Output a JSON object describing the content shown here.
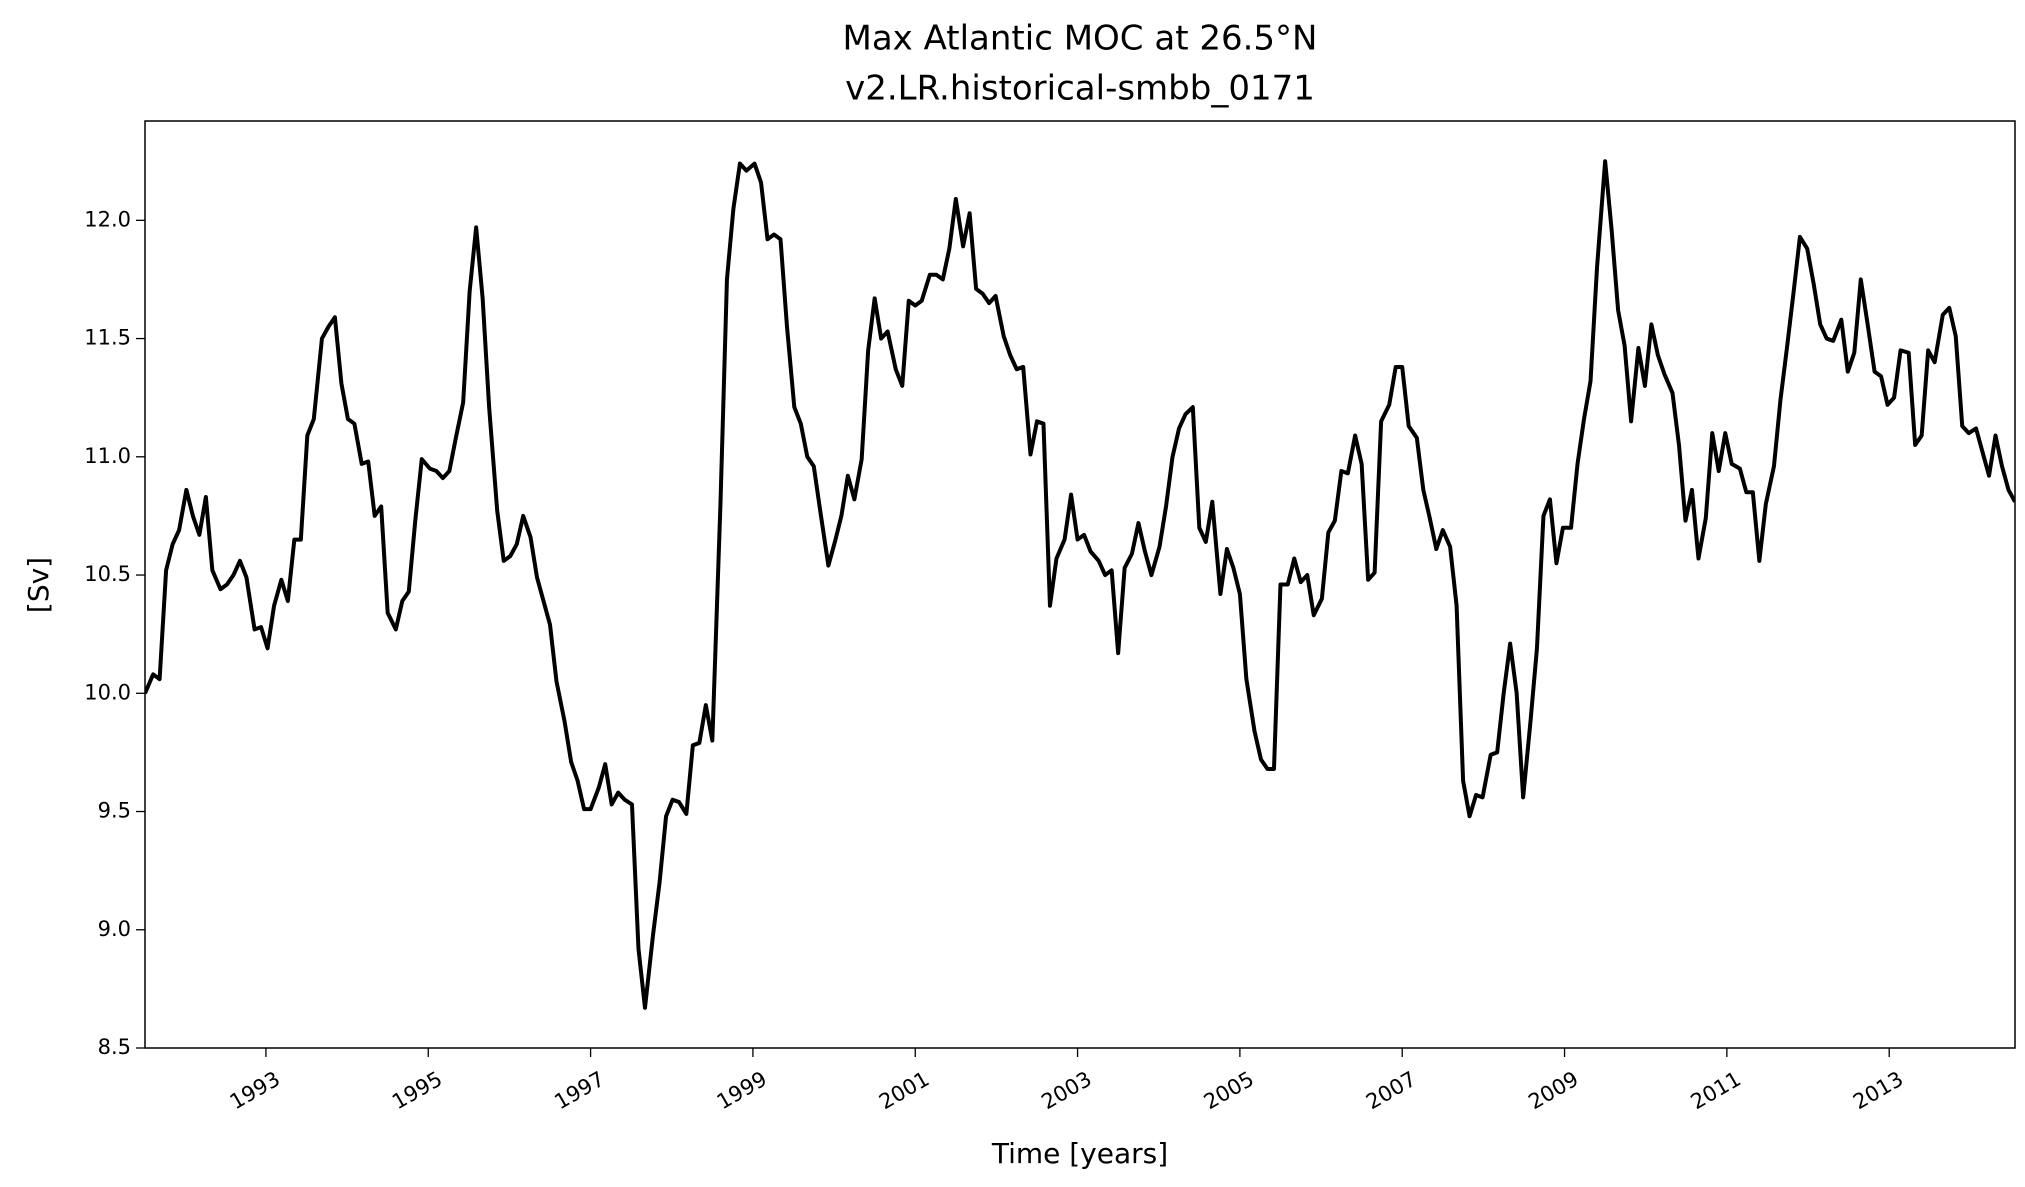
{
  "chart_data": {
    "type": "line",
    "title": "Max Atlantic MOC at 26.5°N",
    "subtitle": "v2.LR.historical-smbb_0171",
    "xlabel": "Time [years]",
    "ylabel": "[Sv]",
    "xlim": [
      1991.51,
      2014.55
    ],
    "ylim": [
      8.5,
      12.42
    ],
    "xticks": [
      1993,
      1995,
      1997,
      1999,
      2001,
      2003,
      2005,
      2007,
      2009,
      2011,
      2013
    ],
    "yticks": [
      8.5,
      {
        "value": 9,
        "label": "9.0"
      },
      9.5,
      {
        "value": 10,
        "label": "10.0"
      },
      10.5,
      {
        "value": 11,
        "label": "11.0"
      },
      11.5,
      {
        "value": 12,
        "label": "12.0"
      }
    ],
    "grid": false,
    "series": [
      {
        "name": "Max Atlantic MOC",
        "color": "#000000",
        "x": [
          1991.51,
          1991.61,
          1991.69,
          1991.77,
          1991.85,
          1991.93,
          1992.02,
          1992.1,
          1992.18,
          1992.26,
          1992.34,
          1992.44,
          1992.52,
          1992.6,
          1992.68,
          1992.76,
          1992.86,
          1992.94,
          1993.02,
          1993.1,
          1993.19,
          1993.27,
          1993.35,
          1993.43,
          1993.51,
          1993.59,
          1993.69,
          1993.77,
          1993.85,
          1993.93,
          1994.01,
          1994.09,
          1994.18,
          1994.26,
          1994.34,
          1994.42,
          1994.5,
          1994.6,
          1994.68,
          1994.76,
          1994.84,
          1994.92,
          1995.02,
          1995.1,
          1995.18,
          1995.26,
          1995.34,
          1995.43,
          1995.51,
          1995.59,
          1995.67,
          1995.75,
          1995.85,
          1995.93,
          1996.01,
          1996.09,
          1996.17,
          1996.26,
          1996.34,
          1996.42,
          1996.5,
          1996.58,
          1996.68,
          1996.76,
          1996.84,
          1996.92,
          1997.0,
          1997.1,
          1997.18,
          1997.26,
          1997.34,
          1997.42,
          1997.51,
          1997.59,
          1997.67,
          1997.77,
          1997.85,
          1997.93,
          1998.01,
          1998.09,
          1998.18,
          1998.26,
          1998.34,
          1998.42,
          1998.5,
          1998.6,
          1998.68,
          1998.76,
          1998.84,
          1998.92,
          1999.02,
          1999.1,
          1999.18,
          1999.26,
          1999.34,
          1999.42,
          1999.51,
          1999.59,
          1999.67,
          1999.75,
          1999.83,
          1999.93,
          2000.01,
          2000.09,
          2000.17,
          2000.25,
          2000.34,
          2000.42,
          2000.5,
          2000.58,
          2000.66,
          2000.76,
          2000.84,
          2000.92,
          2001.0,
          2001.08,
          2001.18,
          2001.26,
          2001.34,
          2001.42,
          2001.5,
          2001.59,
          2001.67,
          2001.75,
          2001.83,
          2001.91,
          2001.99,
          2002.09,
          2002.17,
          2002.25,
          2002.33,
          2002.42,
          2002.5,
          2002.58,
          2002.66,
          2002.74,
          2002.84,
          2002.92,
          2003.0,
          2003.08,
          2003.16,
          2003.26,
          2003.34,
          2003.42,
          2003.5,
          2003.58,
          2003.67,
          2003.75,
          2003.83,
          2003.91,
          2004.01,
          2004.09,
          2004.17,
          2004.25,
          2004.33,
          2004.42,
          2004.5,
          2004.58,
          2004.66,
          2004.76,
          2004.84,
          2004.92,
          2005.0,
          2005.08,
          2005.18,
          2005.26,
          2005.34,
          2005.42,
          2005.5,
          2005.59,
          2005.67,
          2005.75,
          2005.83,
          2005.91,
          2006.01,
          2006.09,
          2006.17,
          2006.25,
          2006.33,
          2006.42,
          2006.5,
          2006.58,
          2006.66,
          2006.74,
          2006.84,
          2006.92,
          2007.0,
          2007.08,
          2007.18,
          2007.26,
          2007.34,
          2007.42,
          2007.5,
          2007.59,
          2007.67,
          2007.75,
          2007.83,
          2007.91,
          2007.99,
          2008.09,
          2008.17,
          2008.25,
          2008.33,
          2008.41,
          2008.49,
          2008.58,
          2008.66,
          2008.74,
          2008.82,
          2008.9,
          2008.98,
          2009.08,
          2009.16,
          2009.24,
          2009.32,
          2009.4,
          2009.5,
          2009.58,
          2009.66,
          2009.74,
          2009.82,
          2009.91,
          2009.99,
          2010.07,
          2010.15,
          2010.23,
          2010.33,
          2010.41,
          2010.49,
          2010.57,
          2010.65,
          2010.74,
          2010.82,
          2010.9,
          2010.98,
          2011.06,
          2011.16,
          2011.24,
          2011.32,
          2011.4,
          2011.48,
          2011.58,
          2011.66,
          2011.74,
          2011.82,
          2011.9,
          2011.99,
          2012.07,
          2012.15,
          2012.23,
          2012.31,
          2012.41,
          2012.49,
          2012.57,
          2012.65,
          2012.73,
          2012.82,
          2012.9,
          2012.98,
          2013.06,
          2013.14,
          2013.24,
          2013.32,
          2013.4,
          2013.48,
          2013.56,
          2013.66,
          2013.74,
          2013.82,
          2013.9,
          2013.98,
          2014.07,
          2014.15,
          2014.23,
          2014.31,
          2014.39,
          2014.47,
          2014.55
        ],
        "values": [
          10.0,
          10.08,
          10.06,
          10.52,
          10.63,
          10.69,
          10.86,
          10.75,
          10.67,
          10.83,
          10.52,
          10.44,
          10.46,
          10.5,
          10.56,
          10.49,
          10.27,
          10.28,
          10.19,
          10.37,
          10.48,
          10.39,
          10.65,
          10.65,
          11.09,
          11.16,
          11.5,
          11.55,
          11.59,
          11.31,
          11.16,
          11.14,
          10.97,
          10.98,
          10.75,
          10.79,
          10.34,
          10.27,
          10.39,
          10.43,
          10.73,
          10.99,
          10.95,
          10.94,
          10.91,
          10.94,
          11.08,
          11.23,
          11.7,
          11.97,
          11.67,
          11.21,
          10.77,
          10.56,
          10.58,
          10.63,
          10.75,
          10.66,
          10.49,
          10.39,
          10.29,
          10.05,
          9.88,
          9.71,
          9.63,
          9.51,
          9.51,
          9.6,
          9.7,
          9.53,
          9.58,
          9.55,
          9.53,
          8.92,
          8.67,
          8.98,
          9.2,
          9.48,
          9.55,
          9.54,
          9.49,
          9.78,
          9.79,
          9.95,
          9.8,
          10.8,
          11.75,
          12.05,
          12.24,
          12.21,
          12.24,
          12.16,
          11.92,
          11.94,
          11.92,
          11.55,
          11.21,
          11.14,
          11.0,
          10.96,
          10.77,
          10.54,
          10.64,
          10.75,
          10.92,
          10.82,
          10.99,
          11.45,
          11.67,
          11.5,
          11.53,
          11.37,
          11.3,
          11.66,
          11.64,
          11.66,
          11.77,
          11.77,
          11.75,
          11.88,
          12.09,
          11.89,
          12.03,
          11.71,
          11.69,
          11.65,
          11.68,
          11.51,
          11.43,
          11.37,
          11.38,
          11.01,
          11.15,
          11.14,
          10.37,
          10.57,
          10.65,
          10.84,
          10.65,
          10.67,
          10.6,
          10.56,
          10.5,
          10.52,
          10.17,
          10.53,
          10.59,
          10.72,
          10.6,
          10.5,
          10.62,
          10.79,
          11.0,
          11.12,
          11.18,
          11.21,
          10.7,
          10.64,
          10.81,
          10.42,
          10.61,
          10.53,
          10.42,
          10.06,
          9.84,
          9.72,
          9.68,
          9.68,
          10.46,
          10.46,
          10.57,
          10.47,
          10.5,
          10.33,
          10.4,
          10.68,
          10.73,
          10.94,
          10.93,
          11.09,
          10.97,
          10.48,
          10.51,
          11.15,
          11.22,
          11.38,
          11.38,
          11.13,
          11.08,
          10.86,
          10.74,
          10.61,
          10.69,
          10.62,
          10.37,
          9.63,
          9.48,
          9.57,
          9.56,
          9.74,
          9.75,
          10.0,
          10.21,
          10.0,
          9.56,
          9.88,
          10.19,
          10.75,
          10.82,
          10.55,
          10.7,
          10.7,
          10.97,
          11.16,
          11.32,
          11.8,
          12.25,
          11.96,
          11.62,
          11.47,
          11.15,
          11.46,
          11.3,
          11.56,
          11.43,
          11.35,
          11.27,
          11.05,
          10.73,
          10.86,
          10.57,
          10.74,
          11.1,
          10.94,
          11.1,
          10.97,
          10.95,
          10.85,
          10.85,
          10.56,
          10.8,
          10.96,
          11.24,
          11.46,
          11.69,
          11.93,
          11.88,
          11.73,
          11.56,
          11.5,
          11.49,
          11.58,
          11.36,
          11.44,
          11.75,
          11.57,
          11.36,
          11.34,
          11.22,
          11.25,
          11.45,
          11.44,
          11.05,
          11.09,
          11.45,
          11.4,
          11.6,
          11.63,
          11.51,
          11.13,
          11.1,
          11.12,
          11.02,
          10.92,
          11.09,
          10.96,
          10.86,
          10.81
        ]
      }
    ]
  }
}
